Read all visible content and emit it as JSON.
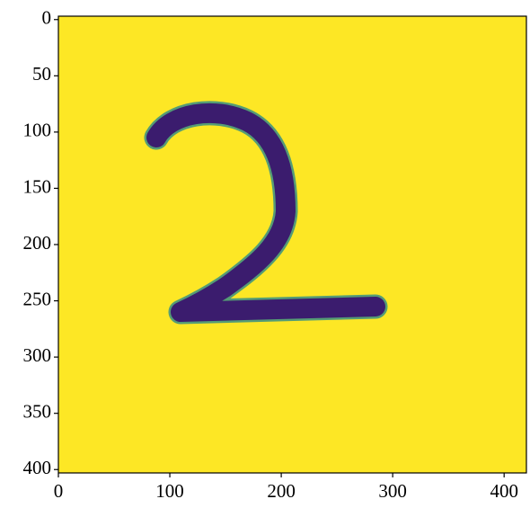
{
  "chart_data": {
    "type": "image",
    "xlim": [
      0,
      420
    ],
    "ylim": [
      403,
      -3
    ],
    "xticks": [
      0,
      100,
      200,
      300,
      400
    ],
    "yticks": [
      0,
      50,
      100,
      150,
      200,
      250,
      300,
      350,
      400
    ],
    "color": "#fde725"
  }
}
